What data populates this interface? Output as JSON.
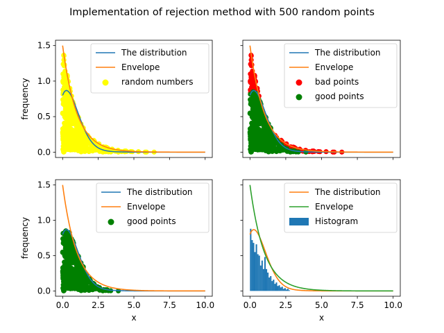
{
  "figure": {
    "suptitle": "Implementation of rejection method with 500 random points",
    "background": "#ffffff"
  },
  "colors": {
    "c0": "#1f77b4",
    "c1": "#ff7f0e",
    "c2": "#2ca02c",
    "yellow": "#ffff00",
    "red": "#ff0000",
    "green": "#008000"
  },
  "chart_data": [
    {
      "id": "top-left",
      "type": "scatter",
      "xlim": [
        -0.5,
        10.5
      ],
      "ylim": [
        -0.075,
        1.575
      ],
      "xticks": [
        0,
        2.5,
        5,
        7.5,
        10
      ],
      "xtick_labels": [
        "",
        "",
        "",
        "",
        ""
      ],
      "yticks": [
        0,
        0.5,
        1,
        1.5
      ],
      "ytick_labels": [
        "0.0",
        "0.5",
        "1.0",
        "1.5"
      ],
      "xlabel": "",
      "ylabel": "frequency",
      "legend": "top-right",
      "series": [
        {
          "name": "The distribution",
          "kind": "line",
          "func": "dist",
          "color": "#1f77b4"
        },
        {
          "name": "Envelope",
          "kind": "line",
          "func": "env",
          "color": "#ff7f0e"
        },
        {
          "name": "random numbers",
          "kind": "scatter",
          "color": "#ffff00",
          "mode": "all",
          "seed": 11
        }
      ]
    },
    {
      "id": "top-right",
      "type": "scatter",
      "xlim": [
        -0.5,
        10.5
      ],
      "ylim": [
        -0.075,
        1.575
      ],
      "xticks": [
        0,
        2.5,
        5,
        7.5,
        10
      ],
      "xtick_labels": [
        "",
        "",
        "",
        "",
        ""
      ],
      "yticks": [
        0,
        0.5,
        1,
        1.5
      ],
      "ytick_labels": [
        "",
        "",
        "",
        ""
      ],
      "xlabel": "",
      "ylabel": "",
      "legend": "top-right",
      "series": [
        {
          "name": "The distribution",
          "kind": "line",
          "func": "dist",
          "color": "#1f77b4"
        },
        {
          "name": "Envelope",
          "kind": "line",
          "func": "env",
          "color": "#ff7f0e"
        },
        {
          "name": "bad points",
          "kind": "scatter",
          "color": "#ff0000",
          "mode": "bad",
          "seed": 11
        },
        {
          "name": "good points",
          "kind": "scatter",
          "color": "#008000",
          "mode": "good",
          "seed": 11
        }
      ]
    },
    {
      "id": "bottom-left",
      "type": "scatter",
      "xlim": [
        -0.5,
        10.5
      ],
      "ylim": [
        -0.075,
        1.575
      ],
      "xticks": [
        0,
        2.5,
        5,
        7.5,
        10
      ],
      "xtick_labels": [
        "0.0",
        "2.5",
        "5.0",
        "7.5",
        "10.0"
      ],
      "yticks": [
        0,
        0.5,
        1,
        1.5
      ],
      "ytick_labels": [
        "0.0",
        "0.5",
        "1.0",
        "1.5"
      ],
      "xlabel": "x",
      "ylabel": "frequency",
      "legend": "top-right",
      "series": [
        {
          "name": "The distribution",
          "kind": "line",
          "func": "dist",
          "color": "#1f77b4"
        },
        {
          "name": "Envelope",
          "kind": "line",
          "func": "env",
          "color": "#ff7f0e"
        },
        {
          "name": "good points",
          "kind": "scatter",
          "color": "#008000",
          "mode": "good",
          "seed": 11
        }
      ]
    },
    {
      "id": "bottom-right",
      "type": "bar",
      "xlim": [
        -0.5,
        10.5
      ],
      "ylim": [
        -0.075,
        1.575
      ],
      "xticks": [
        0,
        2.5,
        5,
        7.5,
        10
      ],
      "xtick_labels": [
        "0.0",
        "2.5",
        "5.0",
        "7.5",
        "10.0"
      ],
      "yticks": [
        0,
        0.5,
        1,
        1.5
      ],
      "ytick_labels": [
        "",
        "",
        "",
        ""
      ],
      "xlabel": "x",
      "ylabel": "",
      "legend": "top-right",
      "histogram": {
        "name": "Histogram",
        "color": "#1f77b4",
        "bin_width": 0.1,
        "x_start": 0.0,
        "values": [
          0.88,
          0.72,
          0.68,
          0.55,
          0.66,
          0.52,
          0.5,
          0.36,
          0.43,
          0.31,
          0.48,
          0.31,
          0.26,
          0.19,
          0.21,
          0.14,
          0.16,
          0.1,
          0.12,
          0.07,
          0.08,
          0.05,
          0.06,
          0.03,
          0.04,
          0.02,
          0.03,
          0.01
        ]
      },
      "series": [
        {
          "name": "The distribution",
          "kind": "line",
          "func": "dist",
          "color": "#ff7f0e"
        },
        {
          "name": "Envelope",
          "kind": "line",
          "func": "env",
          "color": "#2ca02c"
        }
      ]
    }
  ]
}
